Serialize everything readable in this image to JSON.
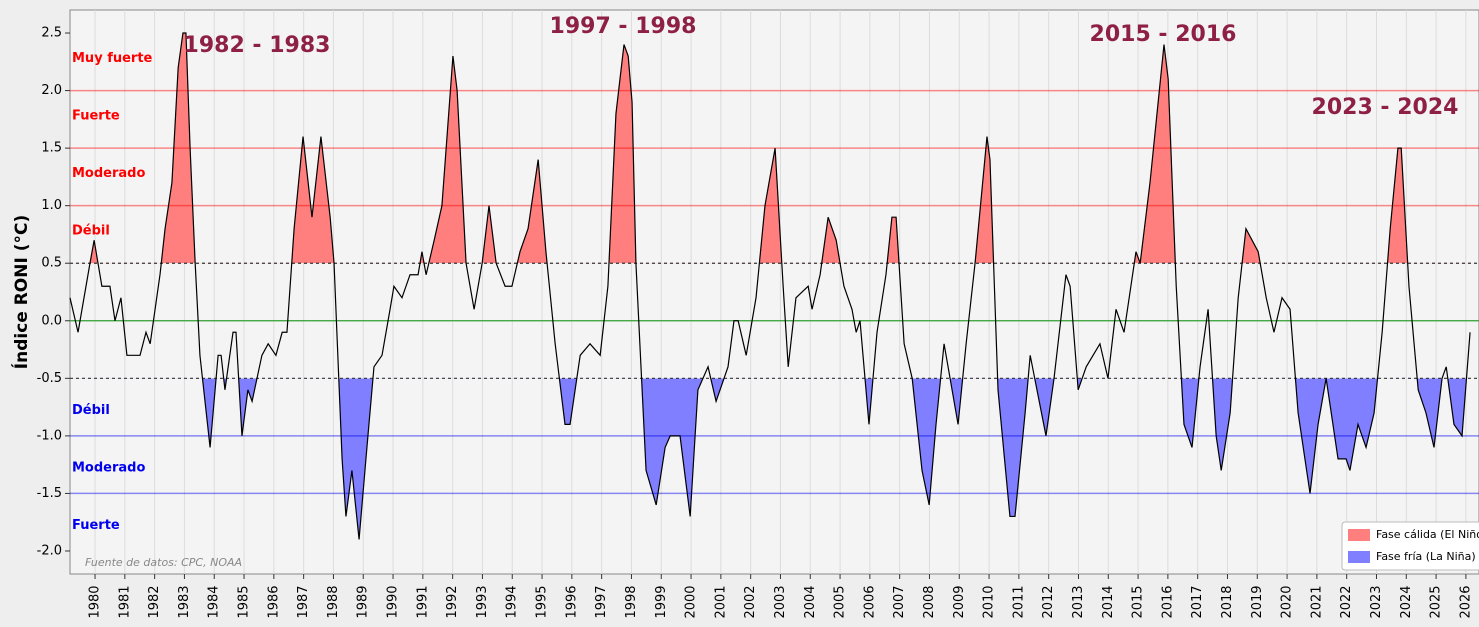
{
  "chart_data": {
    "type": "line",
    "ylabel": "Índice RONI (°C)",
    "source": "Fuente de datos: CPC, NOAA",
    "xlim": [
      1979.16,
      2026.44
    ],
    "ylim": [
      -2.2,
      2.7
    ],
    "xticks": [
      1980,
      1981,
      1982,
      1983,
      1984,
      1985,
      1986,
      1987,
      1988,
      1989,
      1990,
      1991,
      1992,
      1993,
      1994,
      1995,
      1996,
      1997,
      1998,
      1999,
      2000,
      2001,
      2002,
      2003,
      2004,
      2005,
      2006,
      2007,
      2008,
      2009,
      2010,
      2011,
      2012,
      2013,
      2014,
      2015,
      2016,
      2017,
      2018,
      2019,
      2020,
      2021,
      2022,
      2023,
      2024,
      2025,
      2026
    ],
    "yticks": [
      2.5,
      {
        "value": 2,
        "label": "2.0"
      },
      1.5,
      {
        "value": 1,
        "label": "1.0"
      },
      0.5,
      {
        "value": 0,
        "label": "0.0"
      },
      -0.5,
      {
        "value": -1,
        "label": "-1.0"
      },
      -1.5,
      {
        "value": -2,
        "label": "-2.0"
      }
    ],
    "grid": true,
    "line_color": "#000000",
    "zero_color": "#2e9e2e",
    "warm_levels": [
      {
        "value": 0.5,
        "label": "Débil"
      },
      {
        "value": 1,
        "label": "Moderado"
      },
      {
        "value": 1.5,
        "label": "Fuerte"
      },
      {
        "value": 2,
        "label": "Muy fuerte"
      }
    ],
    "cold_levels": [
      {
        "value": -0.5,
        "label": "Débil"
      },
      {
        "value": -1,
        "label": "Moderado"
      },
      {
        "value": -1.5,
        "label": "Fuerte"
      }
    ],
    "warm_color": "#ff7f7f",
    "cold_color": "#7f7fff",
    "legend": [
      {
        "name": "Fase cálida (El Niño)",
        "color": "#ff7f7f"
      },
      {
        "name": "Fase fría (La Niña)",
        "color": "#7f7fff"
      }
    ],
    "legend_position": "lower right",
    "annotations": [
      "1982 - 1983",
      "1997 - 1998",
      "2015 - 2016",
      "2023 - 2024"
    ],
    "x": [
      1979.16,
      1979.43,
      1979.83,
      1979.97,
      1980.23,
      1980.5,
      1980.67,
      1980.87,
      1981.07,
      1981.51,
      1981.71,
      1981.85,
      1982.18,
      1982.35,
      1982.58,
      1982.79,
      1982.95,
      1983.05,
      1983.19,
      1983.36,
      1983.52,
      1983.86,
      1984.13,
      1984.23,
      1984.36,
      1984.63,
      1984.73,
      1984.93,
      1985.13,
      1985.27,
      1985.6,
      1985.81,
      1986.07,
      1986.28,
      1986.44,
      1986.68,
      1986.98,
      1987.28,
      1987.58,
      1987.89,
      1988.02,
      1988.29,
      1988.42,
      1988.62,
      1988.86,
      1989.09,
      1989.36,
      1989.63,
      1989.9,
      1990.03,
      1990.3,
      1990.57,
      1990.84,
      1990.97,
      1991.11,
      1991.38,
      1991.64,
      1992.01,
      1992.15,
      1992.45,
      1992.72,
      1992.99,
      1993.22,
      1993.46,
      1993.76,
      1993.99,
      1994.26,
      1994.53,
      1994.87,
      1995.13,
      1995.44,
      1995.77,
      1995.94,
      1996.28,
      1996.61,
      1996.95,
      1997.21,
      1997.48,
      1997.75,
      1997.89,
      1998.02,
      1998.15,
      1998.49,
      1998.83,
      1999.13,
      1999.3,
      1999.63,
      1999.97,
      2000.23,
      2000.57,
      2000.84,
      2001.24,
      2001.44,
      2001.58,
      2001.85,
      2002.18,
      2002.48,
      2002.82,
      2003.09,
      2003.26,
      2003.52,
      2003.93,
      2004.06,
      2004.33,
      2004.6,
      2004.87,
      2005.13,
      2005.4,
      2005.54,
      2005.67,
      2005.97,
      2006.24,
      2006.54,
      2006.74,
      2006.88,
      2007.15,
      2007.42,
      2007.75,
      2007.99,
      2008.22,
      2008.49,
      2008.96,
      2009.23,
      2009.53,
      2009.93,
      2010.03,
      2010.3,
      2010.7,
      2010.87,
      2011.21,
      2011.38,
      2011.91,
      2012.18,
      2012.58,
      2012.72,
      2012.99,
      2013.26,
      2013.72,
      2013.99,
      2014.26,
      2014.53,
      2014.93,
      2015.07,
      2015.4,
      2015.87,
      2016.01,
      2016.28,
      2016.54,
      2016.81,
      2017.08,
      2017.35,
      2017.62,
      2017.79,
      2018.09,
      2018.36,
      2018.62,
      2019.03,
      2019.3,
      2019.56,
      2019.83,
      2020.1,
      2020.37,
      2020.77,
      2021.04,
      2021.31,
      2021.71,
      2021.98,
      2022.11,
      2022.38,
      2022.65,
      2022.92,
      2023.19,
      2023.46,
      2023.72,
      2023.83,
      2024.09,
      2024.4,
      2024.66,
      2024.93,
      2025.2,
      2025.34,
      2025.6,
      2025.87,
      2026.14
    ],
    "values": [
      0.2,
      -0.1,
      0.5,
      0.7,
      0.3,
      0.3,
      0.0,
      0.2,
      -0.3,
      -0.3,
      -0.1,
      -0.2,
      0.4,
      0.8,
      1.2,
      2.2,
      2.5,
      2.5,
      1.5,
      0.5,
      -0.3,
      -1.1,
      -0.3,
      -0.3,
      -0.6,
      -0.1,
      -0.1,
      -1.0,
      -0.6,
      -0.7,
      -0.3,
      -0.2,
      -0.3,
      -0.1,
      -0.1,
      0.8,
      1.6,
      0.9,
      1.6,
      0.9,
      0.5,
      -1.2,
      -1.7,
      -1.3,
      -1.9,
      -1.2,
      -0.4,
      -0.3,
      0.1,
      0.3,
      0.2,
      0.4,
      0.4,
      0.6,
      0.4,
      0.7,
      1.0,
      2.3,
      2.0,
      0.5,
      0.1,
      0.5,
      1.0,
      0.5,
      0.3,
      0.3,
      0.6,
      0.8,
      1.4,
      0.6,
      -0.2,
      -0.9,
      -0.9,
      -0.3,
      -0.2,
      -0.3,
      0.3,
      1.8,
      2.4,
      2.3,
      1.9,
      0.5,
      -1.3,
      -1.6,
      -1.1,
      -1.0,
      -1.0,
      -1.7,
      -0.6,
      -0.4,
      -0.7,
      -0.4,
      0.0,
      0.0,
      -0.3,
      0.2,
      1.0,
      1.5,
      0.3,
      -0.4,
      0.2,
      0.3,
      0.1,
      0.4,
      0.9,
      0.7,
      0.3,
      0.1,
      -0.1,
      0.0,
      -0.9,
      -0.1,
      0.4,
      0.9,
      0.9,
      -0.2,
      -0.5,
      -1.3,
      -1.6,
      -0.9,
      -0.2,
      -0.9,
      -0.2,
      0.5,
      1.6,
      1.4,
      -0.6,
      -1.7,
      -1.7,
      -0.8,
      -0.3,
      -1.0,
      -0.5,
      0.4,
      0.3,
      -0.6,
      -0.4,
      -0.2,
      -0.5,
      0.1,
      -0.1,
      0.6,
      0.5,
      1.2,
      2.4,
      2.1,
      0.3,
      -0.9,
      -1.1,
      -0.4,
      0.1,
      -1.0,
      -1.3,
      -0.8,
      0.2,
      0.8,
      0.6,
      0.2,
      -0.1,
      0.2,
      0.1,
      -0.8,
      -1.5,
      -0.9,
      -0.5,
      -1.2,
      -1.2,
      -1.3,
      -0.9,
      -1.1,
      -0.8,
      -0.1,
      0.8,
      1.5,
      1.5,
      0.3,
      -0.6,
      -0.8,
      -1.1,
      -0.5,
      -0.4,
      -0.9,
      -1.0,
      -0.1
    ]
  }
}
